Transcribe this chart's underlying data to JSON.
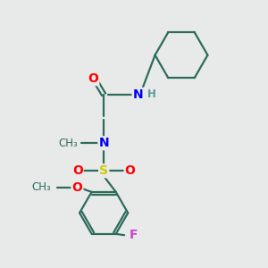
{
  "bg_color": "#e8eaea",
  "bond_color": "#2d6b5a",
  "bond_width": 1.6,
  "atom_colors": {
    "N": "#0000ee",
    "O": "#ff0000",
    "S": "#cccc00",
    "F": "#cc44cc",
    "H": "#5a9a9a",
    "C": "#2d6b5a"
  },
  "font_size_atom": 10,
  "font_size_small": 8.5
}
